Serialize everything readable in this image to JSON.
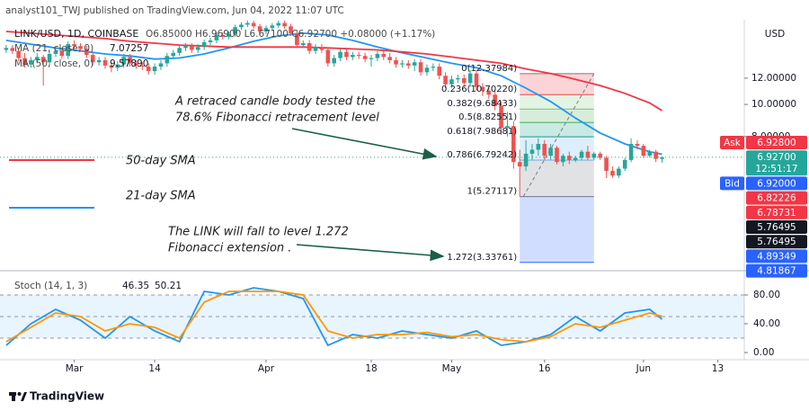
{
  "header": {
    "publisher": "analyst101_TWJ published on TradingView.com, Jun 04, 2022 11:07 UTC",
    "symbol": "LINK/USD, 1D, COINBASE",
    "ohlc": "O6.85000 H6.96900 L6.67100 C6.92700 +0.08000 (+1.17%)"
  },
  "footer": {
    "brand": "TradingView"
  },
  "chart_data": {
    "type": "candlestick",
    "currency": "USD",
    "log_scale": true,
    "up_color": "#26a69a",
    "down_color": "#ef5350",
    "xlim": [
      "2022-02-17",
      "2022-06-17"
    ],
    "xticks": [
      {
        "value": "2022-03-01",
        "label": "Mar"
      },
      {
        "value": "2022-03-14",
        "label": "14"
      },
      {
        "value": "2022-04-01",
        "label": "Apr"
      },
      {
        "value": "2022-04-18",
        "label": "18"
      },
      {
        "value": "2022-05-01",
        "label": "May"
      },
      {
        "value": "2022-05-16",
        "label": "16"
      },
      {
        "value": "2022-06-01",
        "label": "Jun"
      },
      {
        "value": "2022-06-13",
        "label": "13"
      }
    ],
    "ylim": [
      3.17,
      18
    ],
    "yticks": [
      {
        "value": 12,
        "label": "12.00000"
      },
      {
        "value": 10,
        "label": "10.00000"
      },
      {
        "value": 8,
        "label": "8.00000"
      }
    ],
    "x": [
      "2022-02-18",
      "2022-02-19",
      "2022-02-20",
      "2022-02-21",
      "2022-02-22",
      "2022-02-23",
      "2022-02-24",
      "2022-02-25",
      "2022-02-26",
      "2022-02-27",
      "2022-02-28",
      "2022-03-01",
      "2022-03-02",
      "2022-03-03",
      "2022-03-04",
      "2022-03-05",
      "2022-03-06",
      "2022-03-07",
      "2022-03-08",
      "2022-03-09",
      "2022-03-10",
      "2022-03-11",
      "2022-03-12",
      "2022-03-13",
      "2022-03-14",
      "2022-03-15",
      "2022-03-16",
      "2022-03-17",
      "2022-03-18",
      "2022-03-19",
      "2022-03-20",
      "2022-03-21",
      "2022-03-22",
      "2022-03-23",
      "2022-03-24",
      "2022-03-25",
      "2022-03-26",
      "2022-03-27",
      "2022-03-28",
      "2022-03-29",
      "2022-03-30",
      "2022-03-31",
      "2022-04-01",
      "2022-04-02",
      "2022-04-03",
      "2022-04-04",
      "2022-04-05",
      "2022-04-06",
      "2022-04-07",
      "2022-04-08",
      "2022-04-09",
      "2022-04-10",
      "2022-04-11",
      "2022-04-12",
      "2022-04-13",
      "2022-04-14",
      "2022-04-15",
      "2022-04-16",
      "2022-04-17",
      "2022-04-18",
      "2022-04-19",
      "2022-04-20",
      "2022-04-21",
      "2022-04-22",
      "2022-04-23",
      "2022-04-24",
      "2022-04-25",
      "2022-04-26",
      "2022-04-27",
      "2022-04-28",
      "2022-04-29",
      "2022-04-30",
      "2022-05-01",
      "2022-05-02",
      "2022-05-03",
      "2022-05-04",
      "2022-05-05",
      "2022-05-06",
      "2022-05-07",
      "2022-05-08",
      "2022-05-09",
      "2022-05-10",
      "2022-05-11",
      "2022-05-12",
      "2022-05-13",
      "2022-05-14",
      "2022-05-15",
      "2022-05-16",
      "2022-05-17",
      "2022-05-18",
      "2022-05-19",
      "2022-05-20",
      "2022-05-21",
      "2022-05-22",
      "2022-05-23",
      "2022-05-24",
      "2022-05-25",
      "2022-05-26",
      "2022-05-27",
      "2022-05-28",
      "2022-05-29",
      "2022-05-30",
      "2022-05-31",
      "2022-06-01",
      "2022-06-02",
      "2022-06-03",
      "2022-06-04"
    ],
    "open": [
      14.6,
      14.8,
      14.5,
      13.8,
      13.2,
      13.6,
      13.9,
      13.4,
      14.2,
      14.5,
      14.0,
      15.2,
      15.0,
      14.7,
      14.1,
      13.4,
      13.6,
      13.1,
      12.9,
      13.2,
      13.9,
      13.3,
      13.1,
      13.0,
      12.6,
      13.0,
      13.3,
      14.0,
      14.3,
      14.8,
      15.0,
      14.6,
      14.9,
      15.4,
      15.6,
      16.2,
      16.0,
      16.3,
      17.1,
      17.4,
      17.6,
      17.2,
      16.6,
      17.0,
      17.3,
      17.6,
      17.2,
      16.4,
      15.1,
      15.3,
      14.5,
      14.9,
      14.6,
      13.3,
      13.8,
      14.4,
      13.9,
      14.1,
      14.0,
      13.7,
      13.8,
      14.2,
      13.9,
      13.6,
      13.2,
      13.3,
      13.1,
      13.4,
      12.5,
      12.9,
      13.0,
      12.2,
      11.5,
      11.9,
      12.0,
      11.6,
      12.4,
      11.3,
      11.0,
      10.7,
      9.9,
      8.5,
      8.6,
      6.7,
      6.5,
      7.1,
      7.3,
      7.6,
      7.0,
      7.4,
      6.7,
      7.0,
      6.8,
      6.9,
      7.2,
      6.9,
      7.1,
      6.9,
      6.3,
      6.1,
      6.4,
      6.8,
      7.6,
      7.5,
      7.0,
      7.2,
      6.85
    ],
    "high": [
      15.1,
      15.1,
      14.8,
      14.3,
      13.9,
      14.3,
      14.1,
      14.5,
      14.9,
      14.8,
      15.5,
      15.6,
      15.3,
      15.0,
      14.4,
      13.9,
      13.9,
      13.4,
      13.5,
      14.2,
      14.2,
      13.6,
      13.4,
      13.3,
      13.3,
      13.6,
      14.3,
      14.6,
      15.1,
      15.3,
      15.3,
      15.2,
      15.7,
      15.9,
      16.5,
      16.5,
      16.6,
      17.4,
      17.7,
      17.9,
      17.9,
      17.5,
      17.3,
      17.6,
      17.9,
      17.9,
      17.5,
      16.7,
      15.6,
      15.6,
      15.2,
      15.2,
      14.9,
      14.1,
      14.7,
      14.7,
      14.4,
      14.4,
      14.3,
      14.1,
      14.5,
      14.5,
      14.3,
      13.9,
      13.6,
      13.6,
      13.7,
      13.7,
      13.2,
      13.3,
      13.3,
      12.5,
      12.2,
      12.3,
      12.3,
      12.7,
      12.7,
      11.6,
      11.3,
      11.0,
      10.2,
      9.5,
      8.9,
      7.3,
      7.8,
      7.6,
      7.9,
      7.8,
      7.6,
      7.5,
      7.1,
      7.2,
      7.0,
      7.3,
      7.5,
      7.2,
      7.2,
      7.0,
      6.5,
      6.5,
      6.9,
      7.9,
      7.8,
      7.6,
      7.3,
      7.3,
      6.969
    ],
    "low": [
      14.3,
      14.2,
      13.5,
      12.9,
      12.9,
      13.3,
      11.4,
      13.1,
      13.9,
      13.7,
      13.7,
      14.7,
      14.4,
      13.8,
      13.1,
      13.1,
      12.8,
      12.5,
      12.6,
      12.9,
      13.0,
      12.8,
      12.7,
      12.3,
      12.3,
      12.7,
      13.0,
      13.7,
      14.0,
      14.5,
      14.3,
      14.3,
      14.6,
      15.1,
      15.3,
      15.7,
      15.7,
      16.0,
      16.8,
      17.1,
      16.9,
      16.3,
      16.3,
      16.7,
      17.0,
      16.9,
      16.1,
      14.8,
      14.8,
      14.2,
      14.2,
      14.3,
      13.0,
      13.0,
      13.5,
      13.6,
      13.6,
      13.7,
      13.4,
      13.0,
      13.5,
      13.6,
      13.3,
      12.9,
      12.9,
      12.8,
      12.6,
      12.2,
      12.2,
      12.6,
      11.9,
      11.2,
      11.2,
      11.6,
      11.3,
      11.3,
      11.0,
      10.6,
      10.4,
      9.6,
      8.1,
      8.0,
      6.4,
      5.27,
      6.3,
      6.8,
      7.0,
      6.8,
      6.8,
      6.6,
      6.5,
      6.6,
      6.7,
      6.8,
      6.8,
      6.8,
      6.8,
      6.0,
      6.0,
      6.0,
      6.3,
      6.7,
      7.3,
      6.9,
      6.9,
      6.7,
      6.671
    ],
    "close": [
      14.8,
      14.5,
      13.8,
      13.2,
      13.6,
      13.9,
      13.4,
      14.2,
      14.5,
      14.0,
      15.2,
      15.0,
      14.7,
      14.1,
      13.4,
      13.6,
      13.1,
      12.9,
      13.2,
      13.9,
      13.3,
      13.1,
      13.0,
      12.6,
      13.0,
      13.3,
      14.0,
      14.3,
      14.8,
      15.0,
      14.6,
      14.9,
      15.4,
      15.6,
      16.2,
      16.0,
      16.3,
      17.1,
      17.4,
      17.6,
      17.2,
      16.6,
      17.0,
      17.3,
      17.6,
      17.2,
      16.4,
      15.1,
      15.3,
      14.5,
      14.9,
      14.6,
      13.3,
      13.8,
      14.4,
      13.9,
      14.1,
      14.0,
      13.7,
      13.8,
      14.2,
      13.9,
      13.6,
      13.2,
      13.3,
      13.1,
      13.4,
      12.5,
      12.9,
      13.0,
      12.2,
      11.5,
      11.9,
      12.0,
      11.6,
      12.4,
      11.3,
      11.0,
      10.7,
      9.9,
      8.5,
      8.6,
      6.7,
      6.5,
      7.1,
      7.3,
      7.6,
      7.0,
      7.4,
      6.7,
      7.0,
      6.8,
      6.9,
      7.2,
      6.9,
      7.1,
      6.9,
      6.3,
      6.1,
      6.4,
      6.8,
      7.6,
      7.5,
      7.0,
      7.2,
      6.85,
      6.927
    ],
    "last_price": 6.927,
    "moving_averages": {
      "x": [
        "2022-02-18",
        "2022-02-22",
        "2022-02-26",
        "2022-03-02",
        "2022-03-06",
        "2022-03-10",
        "2022-03-14",
        "2022-03-18",
        "2022-03-22",
        "2022-03-26",
        "2022-03-30",
        "2022-04-03",
        "2022-04-07",
        "2022-04-11",
        "2022-04-15",
        "2022-04-19",
        "2022-04-23",
        "2022-04-27",
        "2022-05-01",
        "2022-05-05",
        "2022-05-09",
        "2022-05-13",
        "2022-05-17",
        "2022-05-21",
        "2022-05-25",
        "2022-05-29",
        "2022-06-02",
        "2022-06-04"
      ],
      "series": [
        {
          "name": "MA (21, close, 0)",
          "value_label": "7.07257",
          "color": "#2196f3",
          "values": [
            15.6,
            15.2,
            14.8,
            14.5,
            14.2,
            14.0,
            13.7,
            13.8,
            14.2,
            14.8,
            15.5,
            16.1,
            16.4,
            16.2,
            15.6,
            14.9,
            14.3,
            13.8,
            13.3,
            12.9,
            12.2,
            11.2,
            10.2,
            9.1,
            8.2,
            7.6,
            7.2,
            7.07257
          ]
        },
        {
          "name": "MA (50, close, 0)",
          "value_label": "9.57890",
          "color": "#f23645",
          "values": [
            16.6,
            16.4,
            16.2,
            16.0,
            15.8,
            15.5,
            15.3,
            15.1,
            15.0,
            14.9,
            14.9,
            14.9,
            14.9,
            14.8,
            14.7,
            14.6,
            14.4,
            14.2,
            13.9,
            13.6,
            13.3,
            12.8,
            12.4,
            11.9,
            11.4,
            10.8,
            10.1,
            9.5789
          ]
        }
      ]
    },
    "fibonacci": {
      "x": [
        "2022-05-12",
        "2022-05-24"
      ],
      "levels": [
        {
          "value": 12.37984,
          "label": "0(12.37984)",
          "color": "#787b86"
        },
        {
          "value": 10.7022,
          "label": "0.236(10.70220)",
          "color": "#f23645"
        },
        {
          "value": 9.68433,
          "label": "0.382(9.68433)",
          "color": "#81c784"
        },
        {
          "value": 8.82551,
          "label": "0.5(8.82551)",
          "color": "#4caf50"
        },
        {
          "value": 7.98681,
          "label": "0.618(7.98681)",
          "color": "#089981"
        },
        {
          "value": 6.79242,
          "label": "0.786(6.79242)",
          "color": "#64b5f6"
        },
        {
          "value": 5.27117,
          "label": "1(5.27117)",
          "color": "#787b86"
        },
        {
          "value": 3.33761,
          "label": "1.272(3.33761)",
          "color": "#2962ff"
        }
      ]
    },
    "price_tags": [
      {
        "tag": "Ask",
        "price": "6.92800",
        "color": "#f23645"
      },
      {
        "price": "6.92700",
        "timer": "12:51:17",
        "color": "#26a69a"
      },
      {
        "tag": "Bid",
        "price": "6.92000",
        "color": "#2962ff"
      },
      {
        "price": "6.82226",
        "color": "#f23645"
      },
      {
        "price": "6.78731",
        "color": "#f23645"
      },
      {
        "price": "5.76495",
        "color": "#131722"
      },
      {
        "price": "5.76495",
        "color": "#131722"
      },
      {
        "price": "4.89349",
        "color": "#2962ff"
      },
      {
        "price": "4.81867",
        "color": "#2962ff"
      }
    ],
    "sma_notes": [
      {
        "text": "50-day SMA",
        "color": "#f23645"
      },
      {
        "text": "21-day SMA",
        "color": "#2196f3"
      }
    ],
    "annotations": [
      {
        "lines": [
          "A retraced candle body tested the",
          "78.6% Fibonacci retracement level"
        ]
      },
      {
        "lines": [
          "The LINK will fall to level 1.272",
          "Fibonacci extension  ."
        ]
      }
    ],
    "stochastic": {
      "title": "Stoch (14, 1, 3)",
      "ylim": [
        -10,
        112.5
      ],
      "yticks": [
        {
          "value": 80,
          "label": "80.00"
        },
        {
          "value": 40,
          "label": "40.00"
        },
        {
          "value": 0,
          "label": "0.00"
        }
      ],
      "band": [
        20,
        80
      ],
      "levels": [
        20,
        50,
        80
      ],
      "x": [
        "2022-02-18",
        "2022-02-22",
        "2022-02-26",
        "2022-03-02",
        "2022-03-06",
        "2022-03-10",
        "2022-03-14",
        "2022-03-18",
        "2022-03-22",
        "2022-03-26",
        "2022-03-30",
        "2022-04-03",
        "2022-04-07",
        "2022-04-11",
        "2022-04-15",
        "2022-04-19",
        "2022-04-23",
        "2022-04-27",
        "2022-05-01",
        "2022-05-05",
        "2022-05-09",
        "2022-05-13",
        "2022-05-17",
        "2022-05-21",
        "2022-05-25",
        "2022-05-29",
        "2022-06-02",
        "2022-06-04"
      ],
      "series": [
        {
          "value_label": "46.35",
          "color": "#2196f3",
          "values": [
            10,
            40,
            60,
            45,
            20,
            50,
            30,
            15,
            85,
            80,
            90,
            85,
            75,
            10,
            25,
            20,
            30,
            25,
            20,
            30,
            10,
            15,
            25,
            50,
            30,
            55,
            60,
            46.35
          ]
        },
        {
          "value_label": "50.21",
          "color": "#ff9800",
          "values": [
            15,
            35,
            55,
            50,
            30,
            40,
            35,
            20,
            70,
            85,
            85,
            85,
            80,
            30,
            20,
            25,
            25,
            28,
            22,
            25,
            18,
            15,
            22,
            40,
            35,
            45,
            55,
            50.21
          ]
        }
      ]
    }
  }
}
